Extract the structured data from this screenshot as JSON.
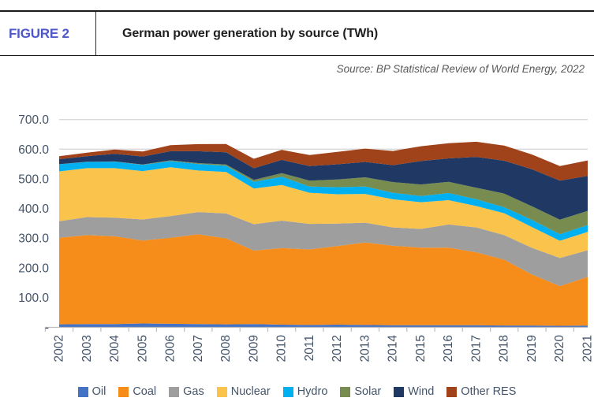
{
  "header": {
    "figure_label": "FIGURE 2",
    "title": "German power generation by source (TWh)"
  },
  "source": "Source: BP Statistical Review of World Energy, 2022",
  "chart_data": {
    "type": "area",
    "stacked": true,
    "title": "German power generation by source (TWh)",
    "xlabel": "",
    "ylabel": "TWh",
    "ylim": [
      0,
      700
    ],
    "ytick_interval": 100,
    "ytick_labels": [
      "-",
      "100.0",
      "200.0",
      "300.0",
      "400.0",
      "500.0",
      "600.0",
      "700.0"
    ],
    "grid": true,
    "legend_position": "bottom",
    "x": [
      "2002",
      "2003",
      "2004",
      "2005",
      "2006",
      "2007",
      "2008",
      "2009",
      "2010",
      "2011",
      "2012",
      "2013",
      "2014",
      "2015",
      "2016",
      "2017",
      "2018",
      "2019",
      "2020",
      "2021"
    ],
    "series": [
      {
        "name": "Oil",
        "color": "#4472C4",
        "values": [
          9,
          10,
          10,
          12,
          11,
          10,
          9,
          10,
          8,
          7,
          8,
          7,
          6,
          6,
          6,
          6,
          5,
          5,
          4,
          5
        ]
      },
      {
        "name": "Coal",
        "color": "#F68C19",
        "values": [
          292,
          300,
          296,
          280,
          290,
          303,
          290,
          248,
          258,
          255,
          265,
          278,
          268,
          262,
          262,
          246,
          222,
          172,
          134,
          164
        ]
      },
      {
        "name": "Gas",
        "color": "#9E9E9E",
        "values": [
          56,
          61,
          63,
          71,
          73,
          75,
          84,
          89,
          93,
          86,
          76,
          67,
          62,
          63,
          78,
          84,
          83,
          90,
          95,
          90
        ]
      },
      {
        "name": "Nuclear",
        "color": "#FAC34B",
        "values": [
          168,
          165,
          167,
          163,
          165,
          140,
          140,
          120,
          120,
          105,
          99,
          97,
          95,
          90,
          82,
          72,
          74,
          70,
          58,
          62
        ]
      },
      {
        "name": "Hydro",
        "color": "#00B0F0",
        "values": [
          24,
          21,
          22,
          21,
          21,
          22,
          21,
          23,
          28,
          21,
          24,
          25,
          22,
          21,
          24,
          23,
          20,
          24,
          22,
          23
        ]
      },
      {
        "name": "Solar",
        "color": "#788C50",
        "values": [
          0.3,
          0.4,
          0.6,
          1.3,
          2.2,
          3.1,
          4.4,
          6.6,
          12,
          20,
          26,
          31,
          36,
          39,
          38,
          39,
          46,
          46,
          49,
          48
        ]
      },
      {
        "name": "Wind",
        "color": "#1F3964",
        "values": [
          17,
          19,
          26,
          27,
          31,
          40,
          41,
          39,
          45,
          49,
          51,
          52,
          57,
          79,
          79,
          104,
          111,
          125,
          132,
          118
        ]
      },
      {
        "name": "Other RES",
        "color": "#A0421A",
        "values": [
          10,
          12,
          14,
          17,
          20,
          24,
          28,
          32,
          34,
          37,
          42,
          45,
          48,
          50,
          51,
          51,
          51,
          50,
          49,
          52
        ]
      }
    ],
    "style": {
      "grid_color": "#D9D9D9",
      "axis_color": "#BFBFBF",
      "tick_label_color": "#44546A",
      "legend_text_color": "#44546A"
    }
  }
}
